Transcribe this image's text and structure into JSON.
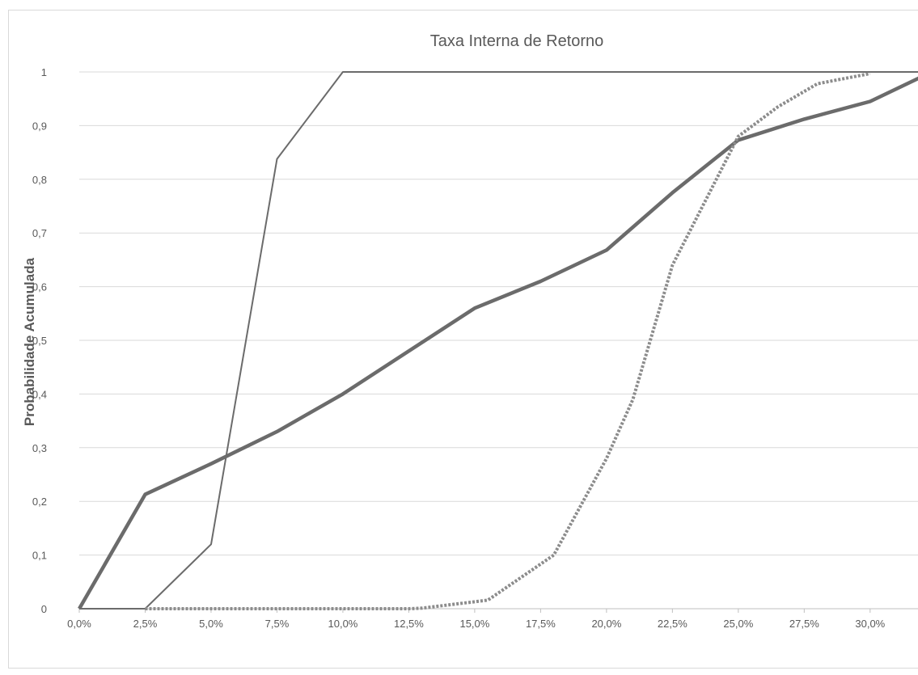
{
  "chart_data": {
    "type": "line",
    "title": "Taxa Interna de Retorno",
    "xlabel": "",
    "ylabel": "Probabilidade Acumulada",
    "xlim": [
      0,
      0.32
    ],
    "ylim": [
      0,
      1
    ],
    "x_ticks": [
      0,
      0.025,
      0.05,
      0.075,
      0.1,
      0.125,
      0.15,
      0.175,
      0.2,
      0.225,
      0.25,
      0.275,
      0.3
    ],
    "x_tick_labels": [
      "0,0%",
      "2,5%",
      "5,0%",
      "7,5%",
      "10,0%",
      "12,5%",
      "15,0%",
      "17,5%",
      "20,0%",
      "22,5%",
      "25,0%",
      "27,5%",
      "30,0%"
    ],
    "y_ticks": [
      0,
      0.1,
      0.2,
      0.3,
      0.4,
      0.5,
      0.6,
      0.7,
      0.8,
      0.9,
      1
    ],
    "y_tick_labels": [
      "0",
      "0,1",
      "0,2",
      "0,3",
      "0,4",
      "0,5",
      "0,6",
      "0,7",
      "0,8",
      "0,9",
      "1"
    ],
    "grid": true,
    "legend": "none",
    "series": [
      {
        "style": "thick-solid",
        "color": "#6b6b6b",
        "points": [
          [
            0,
            0
          ],
          [
            0.025,
            0.213
          ],
          [
            0.05,
            0.27
          ],
          [
            0.075,
            0.33
          ],
          [
            0.1,
            0.4
          ],
          [
            0.125,
            0.48
          ],
          [
            0.15,
            0.56
          ],
          [
            0.175,
            0.61
          ],
          [
            0.2,
            0.668
          ],
          [
            0.225,
            0.775
          ],
          [
            0.25,
            0.873
          ],
          [
            0.275,
            0.912
          ],
          [
            0.3,
            0.945
          ],
          [
            0.32,
            0.992
          ]
        ]
      },
      {
        "style": "thin-solid",
        "color": "#6b6b6b",
        "points": [
          [
            0,
            0
          ],
          [
            0.025,
            0
          ],
          [
            0.05,
            0.12
          ],
          [
            0.075,
            0.838
          ],
          [
            0.1,
            1
          ],
          [
            0.32,
            1
          ]
        ]
      },
      {
        "style": "dotted",
        "color": "#8c8c8c",
        "points": [
          [
            0.025,
            0
          ],
          [
            0.05,
            0
          ],
          [
            0.075,
            0
          ],
          [
            0.1,
            0
          ],
          [
            0.125,
            0
          ],
          [
            0.13,
            0.001
          ],
          [
            0.155,
            0.016
          ],
          [
            0.18,
            0.1
          ],
          [
            0.2,
            0.28
          ],
          [
            0.21,
            0.39
          ],
          [
            0.225,
            0.64
          ],
          [
            0.25,
            0.88
          ],
          [
            0.265,
            0.935
          ],
          [
            0.28,
            0.978
          ],
          [
            0.3,
            0.997
          ]
        ]
      }
    ]
  }
}
